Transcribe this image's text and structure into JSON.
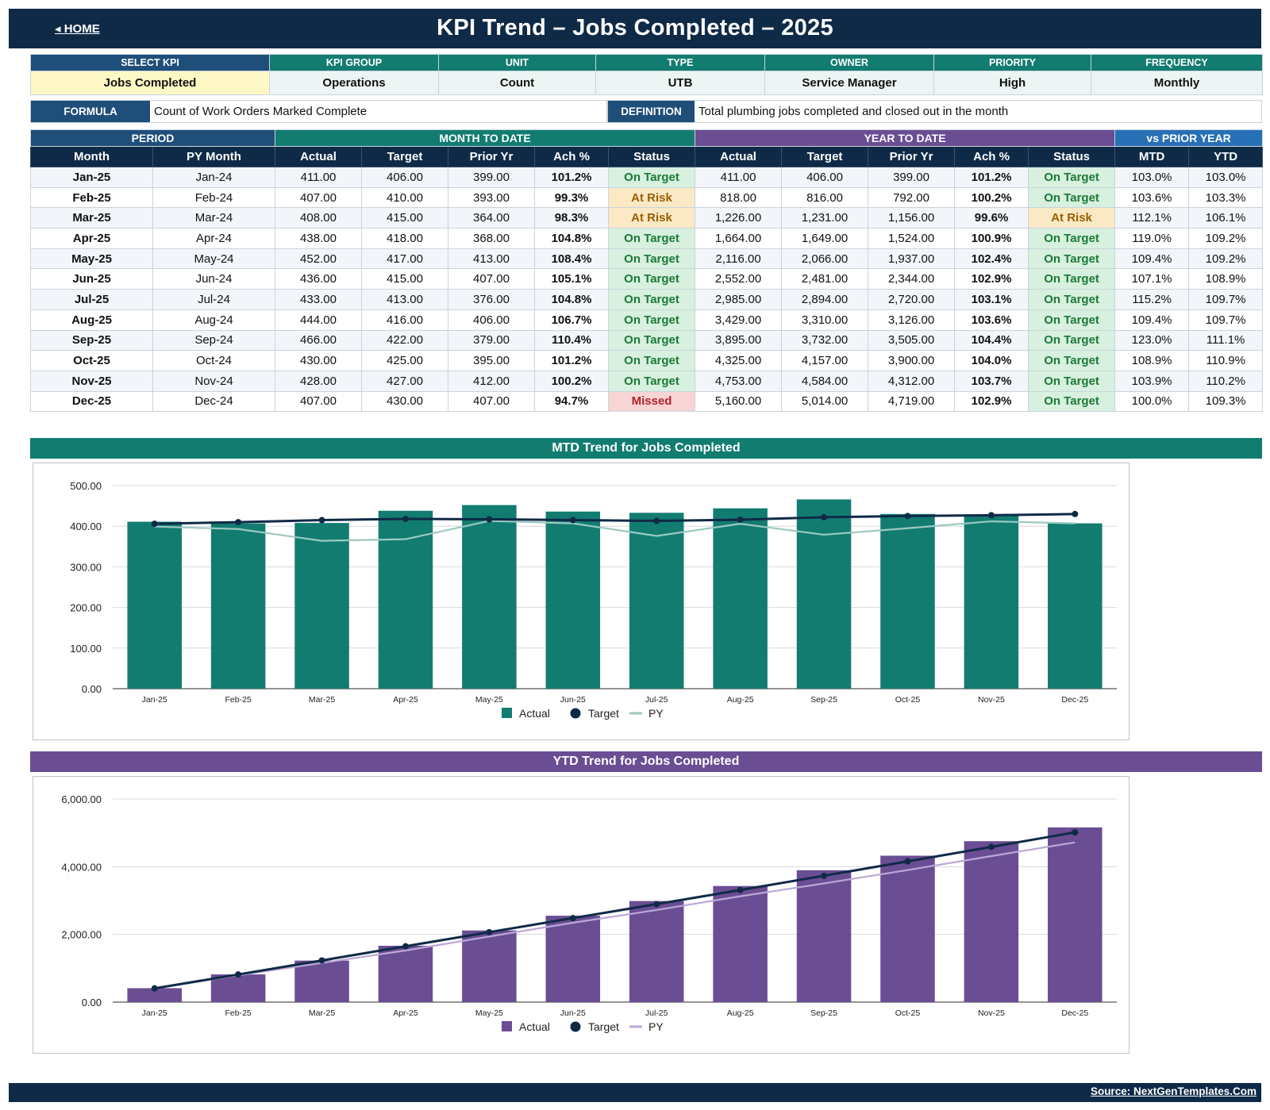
{
  "header": {
    "home_label": "◂ HOME",
    "title": "KPI Trend  –  Jobs Completed  –  2025"
  },
  "meta": {
    "headers": [
      "SELECT KPI",
      "KPI GROUP",
      "UNIT",
      "TYPE",
      "OWNER",
      "PRIORITY",
      "FREQUENCY"
    ],
    "values": [
      "Jobs Completed",
      "Operations",
      "Count",
      "UTB",
      "Service Manager",
      "High",
      "Monthly"
    ]
  },
  "formula": {
    "label": "FORMULA",
    "value": "Count of Work Orders Marked Complete"
  },
  "definition": {
    "label": "DEFINITION",
    "value": "Total plumbing jobs completed and closed out in the month"
  },
  "table": {
    "groups": [
      "PERIOD",
      "MONTH TO DATE",
      "YEAR TO DATE",
      "vs PRIOR YEAR"
    ],
    "columns": [
      "Month",
      "PY Month",
      "Actual",
      "Target",
      "Prior Yr",
      "Ach %",
      "Status",
      "Actual",
      "Target",
      "Prior Yr",
      "Ach %",
      "Status",
      "MTD",
      "YTD"
    ],
    "rows": [
      [
        "Jan-25",
        "Jan-24",
        "411.00",
        "406.00",
        "399.00",
        "101.2%",
        "On Target",
        "411.00",
        "406.00",
        "399.00",
        "101.2%",
        "On Target",
        "103.0%",
        "103.0%"
      ],
      [
        "Feb-25",
        "Feb-24",
        "407.00",
        "410.00",
        "393.00",
        "99.3%",
        "At Risk",
        "818.00",
        "816.00",
        "792.00",
        "100.2%",
        "On Target",
        "103.6%",
        "103.3%"
      ],
      [
        "Mar-25",
        "Mar-24",
        "408.00",
        "415.00",
        "364.00",
        "98.3%",
        "At Risk",
        "1,226.00",
        "1,231.00",
        "1,156.00",
        "99.6%",
        "At Risk",
        "112.1%",
        "106.1%"
      ],
      [
        "Apr-25",
        "Apr-24",
        "438.00",
        "418.00",
        "368.00",
        "104.8%",
        "On Target",
        "1,664.00",
        "1,649.00",
        "1,524.00",
        "100.9%",
        "On Target",
        "119.0%",
        "109.2%"
      ],
      [
        "May-25",
        "May-24",
        "452.00",
        "417.00",
        "413.00",
        "108.4%",
        "On Target",
        "2,116.00",
        "2,066.00",
        "1,937.00",
        "102.4%",
        "On Target",
        "109.4%",
        "109.2%"
      ],
      [
        "Jun-25",
        "Jun-24",
        "436.00",
        "415.00",
        "407.00",
        "105.1%",
        "On Target",
        "2,552.00",
        "2,481.00",
        "2,344.00",
        "102.9%",
        "On Target",
        "107.1%",
        "108.9%"
      ],
      [
        "Jul-25",
        "Jul-24",
        "433.00",
        "413.00",
        "376.00",
        "104.8%",
        "On Target",
        "2,985.00",
        "2,894.00",
        "2,720.00",
        "103.1%",
        "On Target",
        "115.2%",
        "109.7%"
      ],
      [
        "Aug-25",
        "Aug-24",
        "444.00",
        "416.00",
        "406.00",
        "106.7%",
        "On Target",
        "3,429.00",
        "3,310.00",
        "3,126.00",
        "103.6%",
        "On Target",
        "109.4%",
        "109.7%"
      ],
      [
        "Sep-25",
        "Sep-24",
        "466.00",
        "422.00",
        "379.00",
        "110.4%",
        "On Target",
        "3,895.00",
        "3,732.00",
        "3,505.00",
        "104.4%",
        "On Target",
        "123.0%",
        "111.1%"
      ],
      [
        "Oct-25",
        "Oct-24",
        "430.00",
        "425.00",
        "395.00",
        "101.2%",
        "On Target",
        "4,325.00",
        "4,157.00",
        "3,900.00",
        "104.0%",
        "On Target",
        "108.9%",
        "110.9%"
      ],
      [
        "Nov-25",
        "Nov-24",
        "428.00",
        "427.00",
        "412.00",
        "100.2%",
        "On Target",
        "4,753.00",
        "4,584.00",
        "4,312.00",
        "103.7%",
        "On Target",
        "103.9%",
        "110.2%"
      ],
      [
        "Dec-25",
        "Dec-24",
        "407.00",
        "430.00",
        "407.00",
        "94.7%",
        "Missed",
        "5,160.00",
        "5,014.00",
        "4,719.00",
        "102.9%",
        "On Target",
        "100.0%",
        "109.3%"
      ]
    ]
  },
  "colors": {
    "navy": "#0f2a47",
    "blue": "#1f4e7a",
    "teal": "#127c71",
    "purple": "#6a4d93",
    "sky": "#2870b5",
    "py_teal": "#9cc9c2",
    "py_purple": "#bba8d6"
  },
  "chart_data": [
    {
      "type": "bar",
      "title": "MTD Trend for Jobs Completed",
      "categories": [
        "Jan-25",
        "Feb-25",
        "Mar-25",
        "Apr-25",
        "May-25",
        "Jun-25",
        "Jul-25",
        "Aug-25",
        "Sep-25",
        "Oct-25",
        "Nov-25",
        "Dec-25"
      ],
      "series": [
        {
          "name": "Actual",
          "type": "bar",
          "values": [
            411,
            407,
            408,
            438,
            452,
            436,
            433,
            444,
            466,
            430,
            428,
            407
          ]
        },
        {
          "name": "Target",
          "type": "line",
          "values": [
            406,
            410,
            415,
            418,
            417,
            415,
            413,
            416,
            422,
            425,
            427,
            430
          ]
        },
        {
          "name": "PY",
          "type": "line",
          "values": [
            399,
            393,
            364,
            368,
            413,
            407,
            376,
            406,
            379,
            395,
            412,
            407
          ]
        }
      ],
      "ylim": [
        0,
        500
      ],
      "yticks": [
        "0.00",
        "100.00",
        "200.00",
        "300.00",
        "400.00",
        "500.00"
      ],
      "grid": true,
      "legend": "bottom-center"
    },
    {
      "type": "bar",
      "title": "YTD Trend for Jobs Completed",
      "categories": [
        "Jan-25",
        "Feb-25",
        "Mar-25",
        "Apr-25",
        "May-25",
        "Jun-25",
        "Jul-25",
        "Aug-25",
        "Sep-25",
        "Oct-25",
        "Nov-25",
        "Dec-25"
      ],
      "series": [
        {
          "name": "Actual",
          "type": "bar",
          "values": [
            411,
            818,
            1226,
            1664,
            2116,
            2552,
            2985,
            3429,
            3895,
            4325,
            4753,
            5160
          ]
        },
        {
          "name": "Target",
          "type": "line",
          "values": [
            406,
            816,
            1231,
            1649,
            2066,
            2481,
            2894,
            3310,
            3732,
            4157,
            4584,
            5014
          ]
        },
        {
          "name": "PY",
          "type": "line",
          "values": [
            399,
            792,
            1156,
            1524,
            1937,
            2344,
            2720,
            3126,
            3505,
            3900,
            4312,
            4719
          ]
        }
      ],
      "ylim": [
        0,
        6000
      ],
      "yticks": [
        "0.00",
        "2,000.00",
        "4,000.00",
        "6,000.00"
      ],
      "grid": true,
      "legend": "bottom-center"
    }
  ],
  "footer": {
    "source": "Source: NextGenTemplates.Com"
  }
}
